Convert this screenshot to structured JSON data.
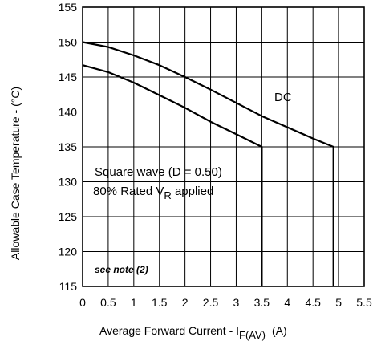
{
  "chart_data": {
    "type": "line",
    "title": "",
    "xlabel": "Average Forward Current - I",
    "xlabel_sub": "F(AV)",
    "xlabel_unit": "(A)",
    "ylabel": "Allowable Case Temperature - (°C)",
    "xlim": [
      0,
      5.5
    ],
    "ylim": [
      115,
      155
    ],
    "grid": true,
    "legend": "none",
    "x_ticks": [
      0,
      0.5,
      1,
      1.5,
      2,
      2.5,
      3,
      3.5,
      4,
      4.5,
      5,
      5.5
    ],
    "x_tick_labels": [
      "0",
      "0.5",
      "1",
      "1.5",
      "2",
      "2.5",
      "3",
      "3.5",
      "4",
      "4.5",
      "5",
      "5.5"
    ],
    "y_ticks": [
      115,
      120,
      125,
      130,
      135,
      140,
      145,
      150,
      155
    ],
    "y_tick_labels": [
      "115",
      "120",
      "125",
      "130",
      "135",
      "140",
      "145",
      "150",
      "155"
    ],
    "series": [
      {
        "id": "dc",
        "x": [
          0,
          0.5,
          1,
          1.5,
          2,
          2.5,
          3,
          3.5,
          4,
          4.5,
          4.9,
          4.9
        ],
        "y": [
          150,
          149.3,
          148.1,
          146.7,
          145.0,
          143.2,
          141.3,
          139.4,
          137.8,
          136.2,
          135,
          115
        ],
        "color": "#000000"
      },
      {
        "id": "square-wave",
        "x": [
          0,
          0.5,
          1,
          1.5,
          2,
          2.5,
          3,
          3.5,
          3.5
        ],
        "y": [
          146.7,
          145.7,
          144.2,
          142.4,
          140.6,
          138.6,
          136.8,
          135,
          115
        ],
        "color": "#000000"
      }
    ],
    "annotations": {
      "dc": "DC",
      "square_wave_line1": "Square wave (D = 0.50)",
      "square_wave_line2_a": "80% Rated V",
      "square_wave_line2_sub": "R",
      "square_wave_line2_b": " applied",
      "note": "see note (2)"
    }
  }
}
